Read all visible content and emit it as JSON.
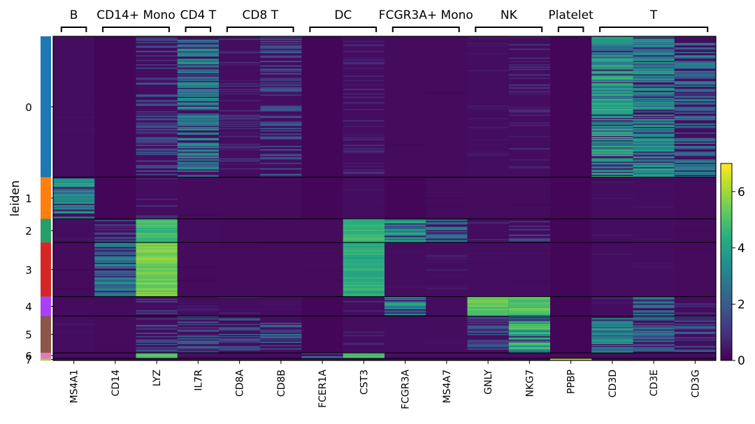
{
  "chart_data": {
    "type": "heatmap",
    "title": "",
    "ylabel": "leiden",
    "xlabel": "",
    "genes": [
      "MS4A1",
      "CD14",
      "LYZ",
      "IL7R",
      "CD8A",
      "CD8B",
      "FCER1A",
      "CST3",
      "FCGR3A",
      "MS4A7",
      "GNLY",
      "NKG7",
      "PPBP",
      "CD3D",
      "CD3E",
      "CD3G"
    ],
    "gene_groups": [
      {
        "label": "B",
        "start": 0,
        "end": 0
      },
      {
        "label": "CD14+ Mono",
        "start": 1,
        "end": 2
      },
      {
        "label": "CD4 T",
        "start": 3,
        "end": 3
      },
      {
        "label": "CD8 T",
        "start": 4,
        "end": 5
      },
      {
        "label": "DC",
        "start": 6,
        "end": 7
      },
      {
        "label": "FCGR3A+ Mono",
        "start": 8,
        "end": 9
      },
      {
        "label": "NK",
        "start": 10,
        "end": 11
      },
      {
        "label": "Platelet",
        "start": 12,
        "end": 12
      },
      {
        "label": "T",
        "start": 13,
        "end": 15
      }
    ],
    "clusters": [
      {
        "label": "0",
        "color": "#1f77b4",
        "cells": 203
      },
      {
        "label": "1",
        "color": "#ff7f0e",
        "cells": 60
      },
      {
        "label": "2",
        "color": "#279e68",
        "cells": 34
      },
      {
        "label": "3",
        "color": "#d62728",
        "cells": 78
      },
      {
        "label": "4",
        "color": "#aa40fc",
        "cells": 28
      },
      {
        "label": "5",
        "color": "#8c564b",
        "cells": 53
      },
      {
        "label": "6",
        "color": "#e377c2",
        "cells": 8
      },
      {
        "label": "7",
        "color": "#b5bd61",
        "cells": 3
      }
    ],
    "mean_expression": [
      [
        0.3,
        0.1,
        1.5,
        2.6,
        0.8,
        1.5,
        0.1,
        0.7,
        0.2,
        0.2,
        0.4,
        0.8,
        0.1,
        3.3,
        2.8,
        2.3
      ],
      [
        3.0,
        0.1,
        0.8,
        0.2,
        0.2,
        0.2,
        0.1,
        0.3,
        0.1,
        0.2,
        0.2,
        0.2,
        0.1,
        0.4,
        0.3,
        0.2
      ],
      [
        0.3,
        1.2,
        4.8,
        0.3,
        0.2,
        0.2,
        0.2,
        4.6,
        3.0,
        2.2,
        0.6,
        1.2,
        0.1,
        0.4,
        0.3,
        0.2
      ],
      [
        0.2,
        2.6,
        5.6,
        0.2,
        0.2,
        0.2,
        0.2,
        4.4,
        0.3,
        0.4,
        0.3,
        0.3,
        0.1,
        0.3,
        0.3,
        0.2
      ],
      [
        0.2,
        0.2,
        1.2,
        0.4,
        0.5,
        0.3,
        0.1,
        0.7,
        2.9,
        0.3,
        5.2,
        5.1,
        0.1,
        0.7,
        2.2,
        0.8
      ],
      [
        0.3,
        0.2,
        1.4,
        1.6,
        1.6,
        1.9,
        0.1,
        0.6,
        0.3,
        0.3,
        1.4,
        3.6,
        0.1,
        2.8,
        2.2,
        1.6
      ],
      [
        0.3,
        0.4,
        5.0,
        0.3,
        0.2,
        0.2,
        3.0,
        4.8,
        0.4,
        0.4,
        0.3,
        0.3,
        0.2,
        0.3,
        0.3,
        0.2
      ],
      [
        0.2,
        0.2,
        1.0,
        0.2,
        0.2,
        0.2,
        0.2,
        1.5,
        0.2,
        0.2,
        0.2,
        0.2,
        6.5,
        0.2,
        0.2,
        0.2
      ]
    ],
    "colorbar": {
      "colormap": "viridis",
      "range": [
        0,
        7
      ],
      "ticks": [
        "0",
        "2",
        "4",
        "6"
      ]
    }
  }
}
